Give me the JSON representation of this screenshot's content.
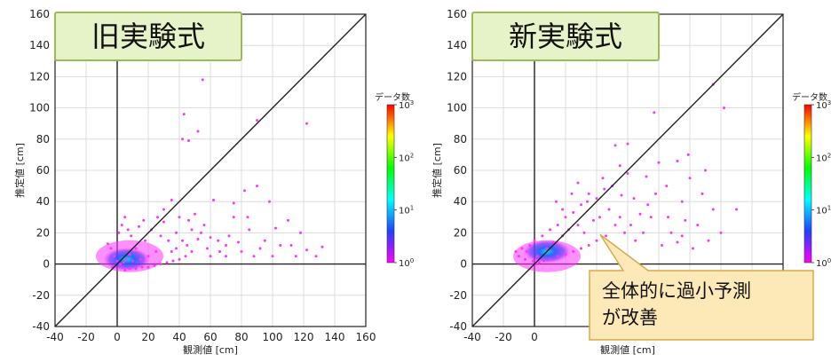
{
  "chart_data": [
    {
      "type": "scatter",
      "subtype": "density-scatter",
      "title": "旧実験式",
      "xlabel": "観測値 [cm]",
      "ylabel": "推定値 [cm]",
      "xlim": [
        -40,
        160
      ],
      "ylim": [
        -40,
        160
      ],
      "xticks": [
        "-40",
        "-20",
        "0",
        "20",
        "40",
        "60",
        "80",
        "100",
        "120",
        "140",
        "160"
      ],
      "yticks": [
        "-40",
        "-20",
        "0",
        "20",
        "40",
        "60",
        "80",
        "100",
        "120",
        "140",
        "160"
      ],
      "grid": true,
      "reference_line": "y = x",
      "colorbar": {
        "label": "データ数",
        "scale": "log",
        "ticks": [
          {
            "base": "10",
            "exp": "0"
          },
          {
            "base": "10",
            "exp": "1"
          },
          {
            "base": "10",
            "exp": "2"
          },
          {
            "base": "10",
            "exp": "3"
          }
        ],
        "colors": [
          "#ff00ff",
          "#2040ff",
          "#00ffff",
          "#00ff00",
          "#ffff00",
          "#ff0000"
        ]
      },
      "points": [
        [
          55,
          118
        ],
        [
          43,
          96
        ],
        [
          42,
          80
        ],
        [
          46,
          79
        ],
        [
          52,
          85
        ],
        [
          90,
          92
        ],
        [
          122,
          90
        ],
        [
          62,
          41
        ],
        [
          75,
          39
        ],
        [
          90,
          50
        ],
        [
          98,
          40
        ],
        [
          82,
          47
        ],
        [
          75,
          30
        ],
        [
          102,
          23
        ],
        [
          110,
          28
        ],
        [
          95,
          15
        ],
        [
          112,
          12
        ],
        [
          122,
          9
        ],
        [
          132,
          11
        ],
        [
          128,
          5
        ],
        [
          80,
          8
        ],
        [
          70,
          5
        ],
        [
          60,
          5
        ],
        [
          56,
          25
        ],
        [
          50,
          32
        ],
        [
          48,
          22
        ],
        [
          45,
          12
        ],
        [
          40,
          30
        ],
        [
          35,
          41
        ],
        [
          30,
          27
        ],
        [
          28,
          18
        ],
        [
          25,
          8
        ],
        [
          20,
          5
        ],
        [
          15,
          3
        ],
        [
          10,
          2
        ],
        [
          8,
          6
        ],
        [
          6,
          3
        ],
        [
          4,
          1
        ],
        [
          2,
          0
        ],
        [
          12,
          10
        ],
        [
          18,
          15
        ],
        [
          22,
          22
        ],
        [
          30,
          35
        ],
        [
          38,
          20
        ],
        [
          42,
          15
        ],
        [
          35,
          8
        ],
        [
          65,
          15
        ],
        [
          72,
          18
        ],
        [
          85,
          22
        ],
        [
          88,
          5
        ],
        [
          100,
          5
        ],
        [
          115,
          5
        ],
        [
          70,
          12
        ],
        [
          58,
          10
        ],
        [
          52,
          16
        ],
        [
          48,
          8
        ],
        [
          44,
          5
        ],
        [
          40,
          3
        ],
        [
          36,
          2
        ],
        [
          32,
          1
        ],
        [
          28,
          0
        ],
        [
          24,
          -1
        ],
        [
          20,
          -2
        ],
        [
          16,
          -2
        ],
        [
          12,
          -3
        ],
        [
          8,
          -3
        ],
        [
          5,
          -4
        ],
        [
          3,
          -2
        ],
        [
          0,
          2
        ],
        [
          -2,
          5
        ],
        [
          -4,
          10
        ],
        [
          -6,
          13
        ],
        [
          -3,
          -2
        ],
        [
          1,
          20
        ],
        [
          3,
          25
        ],
        [
          5,
          30
        ],
        [
          7,
          22
        ],
        [
          9,
          18
        ],
        [
          14,
          24
        ],
        [
          17,
          28
        ],
        [
          26,
          30
        ],
        [
          33,
          15
        ],
        [
          38,
          10
        ],
        [
          46,
          28
        ],
        [
          54,
          20
        ],
        [
          60,
          17
        ],
        [
          66,
          8
        ],
        [
          78,
          14
        ],
        [
          92,
          10
        ],
        [
          105,
          12
        ],
        [
          118,
          20
        ],
        [
          84,
          30
        ]
      ]
    },
    {
      "type": "scatter",
      "subtype": "density-scatter",
      "title": "新実験式",
      "xlabel": "観測値 [cm]",
      "ylabel": "推定値 [cm]",
      "xlim": [
        -40,
        160
      ],
      "ylim": [
        -40,
        160
      ],
      "xticks": [
        "-40",
        "-20",
        "0",
        "20",
        "40",
        "60",
        "80",
        "100",
        "120",
        "140",
        "160"
      ],
      "yticks": [
        "-40",
        "-20",
        "0",
        "20",
        "40",
        "60",
        "80",
        "100",
        "120",
        "140",
        "160"
      ],
      "grid": true,
      "reference_line": "y = x",
      "colorbar": {
        "label": "データ数",
        "scale": "log",
        "ticks": [
          {
            "base": "10",
            "exp": "0"
          },
          {
            "base": "10",
            "exp": "1"
          },
          {
            "base": "10",
            "exp": "2"
          },
          {
            "base": "10",
            "exp": "3"
          }
        ],
        "colors": [
          "#ff00ff",
          "#2040ff",
          "#00ffff",
          "#00ff00",
          "#ffff00",
          "#ff0000"
        ]
      },
      "points": [
        [
          115,
          115
        ],
        [
          122,
          100
        ],
        [
          77,
          97
        ],
        [
          60,
          77
        ],
        [
          52,
          76
        ],
        [
          80,
          65
        ],
        [
          92,
          66
        ],
        [
          99,
          70
        ],
        [
          110,
          60
        ],
        [
          115,
          35
        ],
        [
          120,
          20
        ],
        [
          130,
          35
        ],
        [
          100,
          55
        ],
        [
          95,
          40
        ],
        [
          85,
          50
        ],
        [
          78,
          45
        ],
        [
          72,
          56
        ],
        [
          60,
          58
        ],
        [
          55,
          63
        ],
        [
          50,
          50
        ],
        [
          45,
          48
        ],
        [
          40,
          42
        ],
        [
          35,
          45
        ],
        [
          30,
          38
        ],
        [
          25,
          33
        ],
        [
          20,
          30
        ],
        [
          15,
          25
        ],
        [
          10,
          22
        ],
        [
          5,
          18
        ],
        [
          0,
          15
        ],
        [
          -3,
          12
        ],
        [
          -5,
          8
        ],
        [
          -8,
          10
        ],
        [
          -10,
          5
        ],
        [
          -12,
          8
        ],
        [
          -6,
          3
        ],
        [
          2,
          5
        ],
        [
          8,
          10
        ],
        [
          12,
          14
        ],
        [
          18,
          18
        ],
        [
          22,
          22
        ],
        [
          28,
          25
        ],
        [
          32,
          20
        ],
        [
          38,
          28
        ],
        [
          42,
          30
        ],
        [
          48,
          35
        ],
        [
          55,
          30
        ],
        [
          62,
          25
        ],
        [
          68,
          32
        ],
        [
          75,
          30
        ],
        [
          88,
          20
        ],
        [
          95,
          18
        ],
        [
          105,
          25
        ],
        [
          112,
          15
        ],
        [
          102,
          10
        ],
        [
          92,
          14
        ],
        [
          82,
          12
        ],
        [
          70,
          20
        ],
        [
          65,
          15
        ],
        [
          58,
          20
        ],
        [
          52,
          25
        ],
        [
          46,
          18
        ],
        [
          40,
          15
        ],
        [
          35,
          12
        ],
        [
          30,
          10
        ],
        [
          25,
          8
        ],
        [
          20,
          6
        ],
        [
          15,
          5
        ],
        [
          10,
          3
        ],
        [
          6,
          2
        ],
        [
          3,
          1
        ],
        [
          1,
          0
        ],
        [
          -1,
          2
        ],
        [
          14,
          40
        ],
        [
          18,
          35
        ],
        [
          24,
          45
        ],
        [
          28,
          52
        ],
        [
          34,
          40
        ],
        [
          44,
          55
        ],
        [
          56,
          44
        ],
        [
          64,
          42
        ],
        [
          73,
          38
        ],
        [
          86,
          30
        ],
        [
          97,
          28
        ],
        [
          108,
          45
        ]
      ],
      "callout": {
        "lines": [
          "全体的に過小予測",
          "が改善"
        ],
        "points_to": [
          40,
          20
        ]
      }
    }
  ]
}
